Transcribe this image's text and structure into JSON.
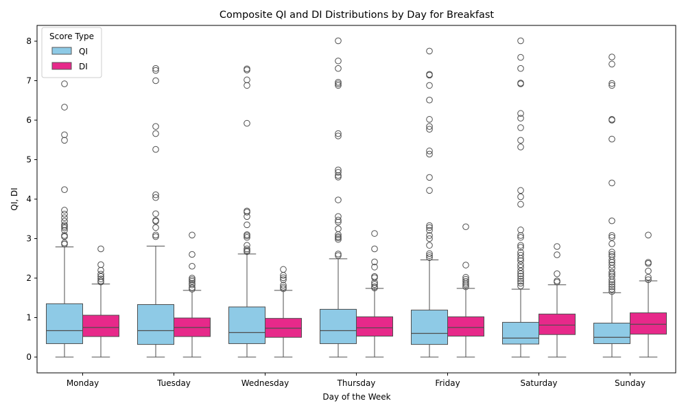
{
  "chart_data": {
    "type": "boxplot",
    "title": "Composite QI and DI Distributions by Day for Breakfast",
    "xlabel": "Day of the Week",
    "ylabel": "QI, DI",
    "ylim": [
      -0.4,
      8.4
    ],
    "yticks": [
      0,
      1,
      2,
      3,
      4,
      5,
      6,
      7,
      8
    ],
    "grid": false,
    "legend": {
      "title": "Score Type",
      "placement": "top-left"
    },
    "categories": [
      "Monday",
      "Tuesday",
      "Wednesday",
      "Thursday",
      "Friday",
      "Saturday",
      "Sunday"
    ],
    "series": [
      {
        "name": "QI",
        "color": "#8ecae6",
        "boxes": [
          {
            "whislo": 0,
            "q1": 0.34,
            "med": 0.67,
            "q3": 1.35,
            "whishi": 2.79,
            "fliers": [
              7.27,
              6.92,
              6.33,
              5.63,
              5.49,
              4.24,
              3.72,
              3.62,
              3.53,
              3.44,
              3.35,
              3.31,
              3.27,
              3.21,
              3.08,
              3.05,
              2.89,
              2.86
            ]
          },
          {
            "whislo": 0,
            "q1": 0.32,
            "med": 0.67,
            "q3": 1.33,
            "whishi": 2.81,
            "fliers": [
              7.31,
              7.26,
              7.0,
              5.84,
              5.66,
              5.26,
              4.11,
              4.04,
              3.63,
              3.46,
              3.44,
              3.28,
              3.09,
              3.05
            ]
          },
          {
            "whislo": 0,
            "q1": 0.34,
            "med": 0.62,
            "q3": 1.27,
            "whishi": 2.61,
            "fliers": [
              7.3,
              7.27,
              7.02,
              6.88,
              5.92,
              3.7,
              3.67,
              3.56,
              3.35,
              3.1,
              3.07,
              3.03,
              2.83,
              2.74,
              2.7,
              2.67
            ]
          },
          {
            "whislo": 0,
            "q1": 0.34,
            "med": 0.67,
            "q3": 1.21,
            "whishi": 2.49,
            "fliers": [
              8.01,
              7.5,
              7.31,
              6.96,
              6.92,
              6.88,
              5.66,
              5.6,
              4.74,
              4.68,
              4.6,
              4.56,
              3.98,
              3.56,
              3.47,
              3.42,
              3.25,
              3.1,
              3.05,
              3.02,
              2.98,
              2.61,
              2.57
            ]
          },
          {
            "whislo": 0,
            "q1": 0.32,
            "med": 0.6,
            "q3": 1.19,
            "whishi": 2.46,
            "fliers": [
              7.75,
              7.16,
              7.14,
              6.88,
              6.51,
              6.02,
              5.84,
              5.77,
              5.22,
              5.14,
              4.55,
              4.22,
              3.33,
              3.28,
              3.21,
              3.08,
              3.0,
              2.83,
              2.62,
              2.57,
              2.52
            ]
          },
          {
            "whislo": 0,
            "q1": 0.33,
            "med": 0.48,
            "q3": 0.88,
            "whishi": 1.72,
            "fliers": [
              8.01,
              7.59,
              7.31,
              6.94,
              6.92,
              6.17,
              6.05,
              5.81,
              5.49,
              5.32,
              4.22,
              4.06,
              3.87,
              3.22,
              3.08,
              3.03,
              2.83,
              2.78,
              2.65,
              2.58,
              2.5,
              2.44,
              2.34,
              2.27,
              2.18,
              2.11,
              2.05,
              1.98,
              1.92,
              1.87,
              1.8
            ]
          },
          {
            "whislo": 0,
            "q1": 0.34,
            "med": 0.5,
            "q3": 0.86,
            "whishi": 1.63,
            "fliers": [
              7.6,
              7.42,
              6.93,
              6.88,
              6.02,
              6.0,
              5.52,
              4.41,
              3.45,
              3.08,
              3.03,
              2.87,
              2.66,
              2.6,
              2.55,
              2.46,
              2.4,
              2.33,
              2.25,
              2.15,
              2.1,
              2.05,
              1.96,
              1.9,
              1.84,
              1.78,
              1.72,
              1.66
            ]
          }
        ]
      },
      {
        "name": "DI",
        "color": "#e7298a",
        "boxes": [
          {
            "whislo": 0,
            "q1": 0.52,
            "med": 0.75,
            "q3": 1.06,
            "whishi": 1.85,
            "fliers": [
              2.74,
              2.34,
              2.2,
              2.1,
              2.04,
              1.98,
              1.93,
              1.9
            ]
          },
          {
            "whislo": 0,
            "q1": 0.52,
            "med": 0.75,
            "q3": 0.99,
            "whishi": 1.69,
            "fliers": [
              3.09,
              2.6,
              2.3,
              2.0,
              1.96,
              1.92,
              1.87,
              1.83,
              1.76,
              1.72
            ]
          },
          {
            "whislo": 0,
            "q1": 0.5,
            "med": 0.73,
            "q3": 0.98,
            "whishi": 1.69,
            "fliers": [
              2.22,
              2.07,
              2.01,
              1.96,
              1.82,
              1.77,
              1.73
            ]
          },
          {
            "whislo": 0,
            "q1": 0.53,
            "med": 0.74,
            "q3": 1.02,
            "whishi": 1.74,
            "fliers": [
              3.13,
              2.74,
              2.41,
              2.28,
              2.04,
              2.01,
              1.89,
              1.84,
              1.78,
              1.75
            ]
          },
          {
            "whislo": 0,
            "q1": 0.53,
            "med": 0.75,
            "q3": 1.02,
            "whishi": 1.74,
            "fliers": [
              3.3,
              2.33,
              2.02,
              1.97,
              1.92,
              1.87,
              1.83,
              1.78
            ]
          },
          {
            "whislo": 0,
            "q1": 0.57,
            "med": 0.81,
            "q3": 1.09,
            "whishi": 1.83,
            "fliers": [
              2.8,
              2.59,
              2.11,
              1.93,
              1.9
            ]
          },
          {
            "whislo": 0,
            "q1": 0.58,
            "med": 0.83,
            "q3": 1.12,
            "whishi": 1.93,
            "fliers": [
              3.09,
              2.4,
              2.37,
              2.18,
              2.02,
              1.96
            ]
          }
        ]
      }
    ]
  }
}
